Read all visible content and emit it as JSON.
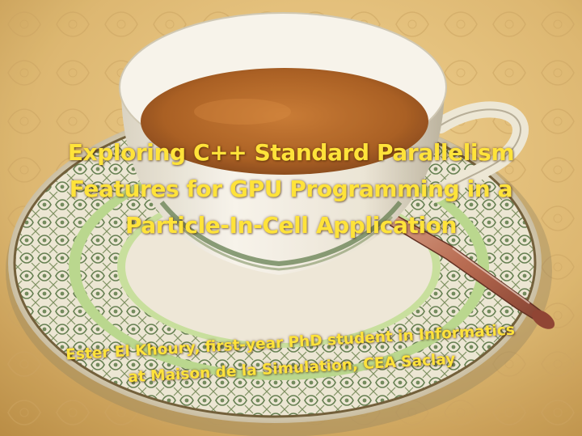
{
  "slide": {
    "title_lines": [
      "Exploring C++ Standard Parallelism",
      "Features for GPU Programming in a",
      "Particle-In-Cell Application"
    ],
    "subtitle_lines": [
      "Ester El Khoury, first-year PhD student in Informatics",
      "at Maison de la Simulation, CEA Saclay"
    ],
    "text_color": "#ffe33a"
  },
  "background": {
    "icons": [
      "teacup-icon",
      "saucer-icon",
      "spoon-icon",
      "tablecloth-icon"
    ],
    "colors": {
      "tablecloth": "#d9b46a",
      "tea": "#b8651e",
      "porcelain": "#f4efe6",
      "pattern_green": "#5f7a4a",
      "rim_band": "#b8d68a",
      "spoon": "#b5654a"
    }
  }
}
